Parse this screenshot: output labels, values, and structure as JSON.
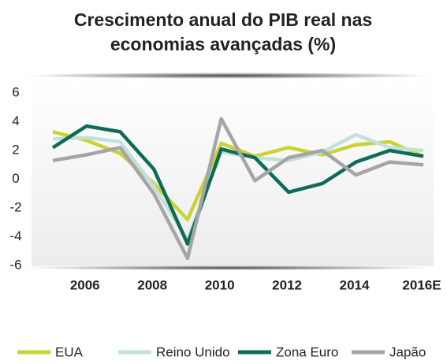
{
  "chart_data": {
    "type": "line",
    "title": [
      "Crescimento anual do PIB real nas",
      "economias avançadas (%)"
    ],
    "categories": [
      null,
      "2006",
      null,
      "2008",
      null,
      "2010",
      null,
      "2012",
      null,
      "2014",
      null,
      "2016E"
    ],
    "series": [
      {
        "name": "EUA",
        "color": "#c9d335",
        "values": [
          3.3,
          2.7,
          1.8,
          -0.3,
          -2.8,
          2.5,
          1.6,
          2.2,
          1.7,
          2.4,
          2.6,
          1.6
        ]
      },
      {
        "name": "Reino Unido",
        "color": "#c2e1db",
        "values": [
          2.8,
          2.9,
          2.6,
          -0.5,
          -4.2,
          1.9,
          1.5,
          1.3,
          1.9,
          3.1,
          2.2,
          2.0
        ]
      },
      {
        "name": "Zona Euro",
        "color": "#0d6b58",
        "values": [
          2.2,
          3.7,
          3.3,
          0.7,
          -4.5,
          2.1,
          1.5,
          -0.9,
          -0.3,
          1.2,
          2.0,
          1.6
        ]
      },
      {
        "name": "Japão",
        "color": "#a5a5a5",
        "values": [
          1.3,
          1.7,
          2.2,
          -1.0,
          -5.5,
          4.2,
          -0.1,
          1.5,
          2.0,
          0.3,
          1.2,
          1.0
        ]
      }
    ],
    "ylim": [
      -6,
      6
    ],
    "yticks": [
      -6,
      -4,
      -2,
      0,
      2,
      4,
      6
    ],
    "grid": false,
    "legend": "bottom"
  }
}
